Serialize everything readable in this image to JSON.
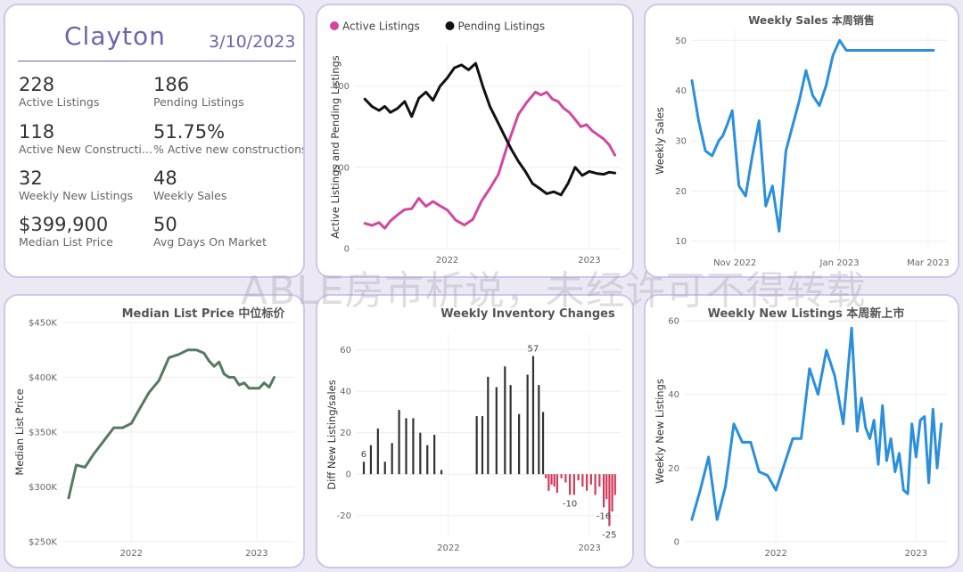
{
  "summary": {
    "city": "Clayton",
    "date": "3/10/2023",
    "kpis": [
      {
        "value": "228",
        "label": "Active Listings"
      },
      {
        "value": "186",
        "label": "Pending Listings"
      },
      {
        "value": "118",
        "label": "Active New Constructi..."
      },
      {
        "value": "51.75%",
        "label": "% Active new constructions"
      },
      {
        "value": "32",
        "label": "Weekly New Listings"
      },
      {
        "value": "48",
        "label": "Weekly Sales"
      },
      {
        "value": "$399,900",
        "label": "Median List Price"
      },
      {
        "value": "50",
        "label": "Avg Days On Market"
      }
    ]
  },
  "watermark": "ABLE房市析说，未经许可不得转载",
  "colors": {
    "active": "#d0489f",
    "pending": "#111111",
    "blue": "#2b8fdc",
    "green": "#557a60",
    "neg": "#d03a5a",
    "pos": "#333333"
  },
  "chart_data": [
    {
      "id": "listings",
      "type": "line",
      "title": "",
      "ylabel": "Active Listings and Pending Listings",
      "ylim": [
        0,
        500
      ],
      "xlim": [
        2021.35,
        2023.22
      ],
      "yticks": [
        0,
        200,
        400
      ],
      "xticks": [
        {
          "v": 2022.0,
          "label": "2022"
        },
        {
          "v": 2023.0,
          "label": "2023"
        }
      ],
      "legend": "top-left",
      "series": [
        {
          "name": "Active Listings",
          "color": "#d0489f",
          "x": [
            2021.42,
            2021.47,
            2021.52,
            2021.56,
            2021.6,
            2021.65,
            2021.7,
            2021.75,
            2021.8,
            2021.85,
            2021.9,
            2021.95,
            2022.0,
            2022.06,
            2022.12,
            2022.18,
            2022.24,
            2022.3,
            2022.36,
            2022.42,
            2022.5,
            2022.56,
            2022.62,
            2022.66,
            2022.7,
            2022.74,
            2022.78,
            2022.82,
            2022.86,
            2022.9,
            2022.94,
            2022.98,
            2023.02,
            2023.06,
            2023.1,
            2023.14,
            2023.18
          ],
          "values": [
            62,
            57,
            64,
            50,
            68,
            83,
            96,
            98,
            124,
            104,
            116,
            105,
            95,
            70,
            58,
            72,
            116,
            148,
            183,
            250,
            330,
            360,
            385,
            378,
            385,
            368,
            362,
            345,
            335,
            318,
            300,
            305,
            290,
            280,
            270,
            255,
            230
          ]
        },
        {
          "name": "Pending Listings",
          "color": "#111111",
          "x": [
            2021.42,
            2021.47,
            2021.52,
            2021.56,
            2021.6,
            2021.65,
            2021.7,
            2021.75,
            2021.8,
            2021.85,
            2021.9,
            2021.95,
            2022.0,
            2022.05,
            2022.1,
            2022.15,
            2022.2,
            2022.25,
            2022.3,
            2022.35,
            2022.4,
            2022.45,
            2022.5,
            2022.55,
            2022.6,
            2022.65,
            2022.7,
            2022.75,
            2022.8,
            2022.85,
            2022.9,
            2022.95,
            2023.0,
            2023.05,
            2023.1,
            2023.14,
            2023.18
          ],
          "values": [
            368,
            350,
            340,
            350,
            335,
            345,
            362,
            325,
            370,
            385,
            365,
            400,
            420,
            445,
            452,
            440,
            456,
            400,
            350,
            315,
            280,
            245,
            215,
            190,
            160,
            148,
            135,
            140,
            132,
            160,
            200,
            180,
            190,
            185,
            183,
            188,
            186
          ]
        }
      ]
    },
    {
      "id": "weekly_sales",
      "type": "line",
      "title": "Weekly Sales 本周销售",
      "ylabel": "Weekly Sales",
      "ylim": [
        8,
        52
      ],
      "xlim": [
        0,
        19
      ],
      "yticks": [
        10,
        20,
        30,
        40,
        50
      ],
      "xticks": [
        {
          "v": 3.2,
          "label": "Nov 2022"
        },
        {
          "v": 11.0,
          "label": "Jan 2023"
        },
        {
          "v": 17.6,
          "label": "Mar 2023"
        }
      ],
      "series": [
        {
          "name": "Weekly Sales",
          "color": "#2b8fdc",
          "x": [
            0,
            0.5,
            1,
            1.5,
            2,
            2.3,
            2.6,
            3,
            3.5,
            4,
            4.5,
            5,
            5.5,
            6,
            6.5,
            7,
            7.5,
            8,
            8.5,
            9,
            9.5,
            10,
            10.5,
            11,
            11.5,
            12,
            12.5,
            13,
            13.5,
            14,
            14.5,
            15,
            15.5,
            16,
            16.5,
            17,
            17.5,
            18
          ],
          "values": [
            42,
            34,
            28,
            27,
            30,
            31,
            33,
            36,
            21,
            19,
            27,
            34,
            17,
            21,
            12,
            28,
            33,
            38,
            44,
            39,
            37,
            41,
            47,
            50,
            48,
            48,
            48,
            48,
            48,
            48,
            48,
            48,
            48,
            48,
            48,
            48,
            48,
            48
          ]
        }
      ]
    },
    {
      "id": "median_price",
      "type": "line",
      "title": "Median List Price 中位标价",
      "ylabel": "Median List Price",
      "ylim": [
        250000,
        450000
      ],
      "xlim": [
        2021.45,
        2023.3
      ],
      "yticks": [
        {
          "v": 250000,
          "label": "$250K"
        },
        {
          "v": 300000,
          "label": "$300K"
        },
        {
          "v": 350000,
          "label": "$350K"
        },
        {
          "v": 400000,
          "label": "$400K"
        },
        {
          "v": 450000,
          "label": "$450K"
        }
      ],
      "xticks": [
        {
          "v": 2022.0,
          "label": "2022"
        },
        {
          "v": 2023.0,
          "label": "2023"
        }
      ],
      "series": [
        {
          "name": "Median List Price",
          "color": "#557a60",
          "x": [
            2021.5,
            2021.56,
            2021.63,
            2021.7,
            2021.78,
            2021.86,
            2021.93,
            2022.0,
            2022.07,
            2022.14,
            2022.22,
            2022.3,
            2022.38,
            2022.45,
            2022.52,
            2022.58,
            2022.62,
            2022.66,
            2022.7,
            2022.74,
            2022.78,
            2022.82,
            2022.86,
            2022.9,
            2022.94,
            2022.98,
            2023.02,
            2023.06,
            2023.1,
            2023.14
          ],
          "values": [
            290000,
            320000,
            318000,
            330000,
            342000,
            354000,
            354000,
            358000,
            372000,
            386000,
            397000,
            418000,
            421000,
            425000,
            425000,
            422000,
            415000,
            410000,
            414000,
            403000,
            400000,
            400000,
            393000,
            395000,
            390000,
            390000,
            390000,
            395000,
            391000,
            400000
          ]
        }
      ]
    },
    {
      "id": "inventory_changes",
      "type": "bar",
      "title": "Weekly Inventory Changes",
      "ylabel": "Diff New Listing/sales",
      "ylim": [
        -30,
        68
      ],
      "xlim": [
        2021.35,
        2023.22
      ],
      "yticks": [
        -20,
        0,
        20,
        40,
        60
      ],
      "xticks": [
        {
          "v": 2022.0,
          "label": "2022"
        },
        {
          "v": 2023.0,
          "label": "2023"
        }
      ],
      "x": [
        2021.4,
        2021.45,
        2021.5,
        2021.55,
        2021.6,
        2021.65,
        2021.7,
        2021.75,
        2021.8,
        2021.85,
        2021.9,
        2021.95,
        2022.2,
        2022.24,
        2022.28,
        2022.34,
        2022.4,
        2022.44,
        2022.5,
        2022.56,
        2022.6,
        2022.64,
        2022.67,
        2022.69,
        2022.71,
        2022.73,
        2022.75,
        2022.77,
        2022.8,
        2022.83,
        2022.86,
        2022.89,
        2022.92,
        2022.95,
        2022.98,
        2023.01,
        2023.04,
        2023.07,
        2023.1,
        2023.12,
        2023.14,
        2023.16,
        2023.18
      ],
      "values": [
        6,
        14,
        22,
        6,
        15,
        31,
        27,
        27,
        20,
        14,
        19,
        2,
        28,
        28,
        47,
        42,
        52,
        43,
        29,
        48,
        57,
        43,
        30,
        -2,
        -8,
        -5,
        -6,
        -9,
        -2,
        -4,
        -10,
        -10,
        -3,
        -6,
        -8,
        -5,
        -10,
        -6,
        -16,
        -12,
        -25,
        -18,
        -10
      ],
      "data_labels": [
        {
          "i": 0,
          "text": "6"
        },
        {
          "i": 20,
          "text": "57"
        },
        {
          "i": 30,
          "text": "-10"
        },
        {
          "i": 38,
          "text": "-16"
        },
        {
          "i": 40,
          "text": "-25"
        }
      ]
    },
    {
      "id": "new_listings",
      "type": "line",
      "title": "Weekly New Listings 本周新上市",
      "ylabel": "Weekly New Listings",
      "ylim": [
        0,
        60
      ],
      "xlim": [
        2021.35,
        2023.22
      ],
      "yticks": [
        0,
        20,
        40,
        60
      ],
      "xticks": [
        {
          "v": 2022.0,
          "label": "2022"
        },
        {
          "v": 2023.0,
          "label": "2023"
        }
      ],
      "series": [
        {
          "name": "Weekly New Listings",
          "color": "#2b8fdc",
          "x": [
            2021.4,
            2021.46,
            2021.52,
            2021.58,
            2021.64,
            2021.7,
            2021.76,
            2021.82,
            2021.88,
            2021.94,
            2022.0,
            2022.06,
            2022.12,
            2022.18,
            2022.24,
            2022.3,
            2022.36,
            2022.42,
            2022.48,
            2022.54,
            2022.58,
            2022.61,
            2022.64,
            2022.67,
            2022.7,
            2022.73,
            2022.76,
            2022.79,
            2022.82,
            2022.85,
            2022.88,
            2022.91,
            2022.94,
            2022.97,
            2023.0,
            2023.03,
            2023.06,
            2023.09,
            2023.12,
            2023.15,
            2023.18
          ],
          "values": [
            6,
            14,
            23,
            6,
            15,
            32,
            27,
            27,
            19,
            18,
            14,
            21,
            28,
            28,
            47,
            40,
            52,
            45,
            32,
            58,
            30,
            39,
            31,
            28,
            33,
            21,
            37,
            22,
            28,
            19,
            24,
            14,
            13,
            32,
            23,
            33,
            34,
            16,
            36,
            20,
            32
          ]
        }
      ]
    }
  ]
}
